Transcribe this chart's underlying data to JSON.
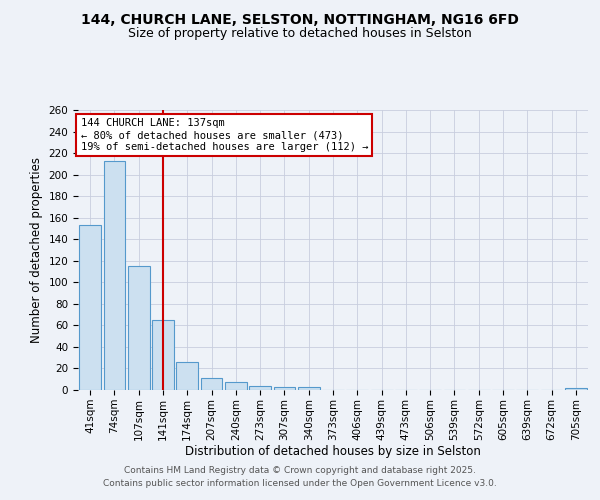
{
  "title_line1": "144, CHURCH LANE, SELSTON, NOTTINGHAM, NG16 6FD",
  "title_line2": "Size of property relative to detached houses in Selston",
  "xlabel": "Distribution of detached houses by size in Selston",
  "ylabel": "Number of detached properties",
  "categories": [
    "41sqm",
    "74sqm",
    "107sqm",
    "141sqm",
    "174sqm",
    "207sqm",
    "240sqm",
    "273sqm",
    "307sqm",
    "340sqm",
    "373sqm",
    "406sqm",
    "439sqm",
    "473sqm",
    "506sqm",
    "539sqm",
    "572sqm",
    "605sqm",
    "639sqm",
    "672sqm",
    "705sqm"
  ],
  "values": [
    153,
    213,
    115,
    65,
    26,
    11,
    7,
    4,
    3,
    3,
    0,
    0,
    0,
    0,
    0,
    0,
    0,
    0,
    0,
    0,
    2
  ],
  "bar_color": "#cce0f0",
  "bar_edge_color": "#5599cc",
  "vline_x_index": 3,
  "vline_color": "#cc0000",
  "annotation_title": "144 CHURCH LANE: 137sqm",
  "annotation_line2": "← 80% of detached houses are smaller (473)",
  "annotation_line3": "19% of semi-detached houses are larger (112) →",
  "annotation_box_color": "#cc0000",
  "annotation_bg": "#ffffff",
  "ylim": [
    0,
    260
  ],
  "yticks": [
    0,
    20,
    40,
    60,
    80,
    100,
    120,
    140,
    160,
    180,
    200,
    220,
    240,
    260
  ],
  "footer_line1": "Contains HM Land Registry data © Crown copyright and database right 2025.",
  "footer_line2": "Contains public sector information licensed under the Open Government Licence v3.0.",
  "bg_color": "#eef2f8",
  "grid_color": "#c8cede",
  "title_fontsize": 10,
  "subtitle_fontsize": 9,
  "axis_label_fontsize": 8.5,
  "tick_fontsize": 7.5,
  "annotation_fontsize": 7.5,
  "footer_fontsize": 6.5
}
